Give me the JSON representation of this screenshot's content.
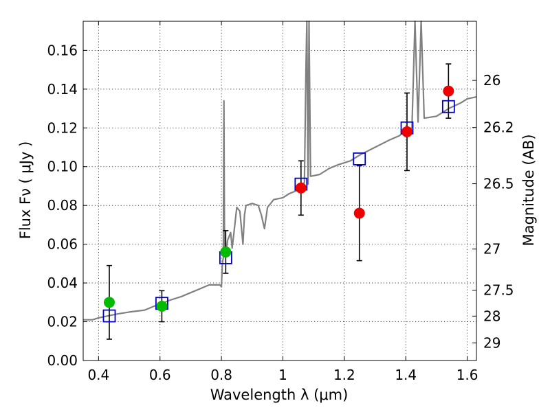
{
  "chart_data": {
    "type": "scatter",
    "xlabel": "Wavelength  λ (μm)",
    "ylabel": "Flux  Fν  ( μJy )",
    "y2label": "Magnitude (AB)",
    "xlim": [
      0.35,
      1.63
    ],
    "ylim": [
      0.0,
      0.175
    ],
    "xticks": [
      0.4,
      0.6,
      0.8,
      1.0,
      1.2,
      1.4,
      1.6
    ],
    "xtick_labels": [
      "0.4",
      "0.6",
      "0.8",
      "1",
      "1.2",
      "1.4",
      "1.6"
    ],
    "yticks": [
      0.0,
      0.02,
      0.04,
      0.06,
      0.08,
      0.1,
      0.12,
      0.14,
      0.16
    ],
    "ytick_labels": [
      "0.00",
      "0.02",
      "0.04",
      "0.06",
      "0.08",
      "0.10",
      "0.12",
      "0.14",
      "0.16"
    ],
    "mag_ticks": [
      {
        "label": "26",
        "flux": 0.1445
      },
      {
        "label": "26.2",
        "flux": 0.1202
      },
      {
        "label": "26.5",
        "flux": 0.0912
      },
      {
        "label": "27",
        "flux": 0.0575
      },
      {
        "label": "27.5",
        "flux": 0.0363
      },
      {
        "label": "28",
        "flux": 0.0229
      },
      {
        "label": "29",
        "flux": 0.0091
      }
    ],
    "grid": true,
    "model_spectrum": {
      "color": "#808080",
      "points": [
        [
          0.35,
          0.021
        ],
        [
          0.38,
          0.021
        ],
        [
          0.4,
          0.022
        ],
        [
          0.43,
          0.023
        ],
        [
          0.46,
          0.024
        ],
        [
          0.5,
          0.025
        ],
        [
          0.55,
          0.026
        ],
        [
          0.58,
          0.028
        ],
        [
          0.6,
          0.029
        ],
        [
          0.63,
          0.031
        ],
        [
          0.67,
          0.033
        ],
        [
          0.7,
          0.035
        ],
        [
          0.73,
          0.037
        ],
        [
          0.76,
          0.039
        ],
        [
          0.795,
          0.039
        ],
        [
          0.8,
          0.038
        ],
        [
          0.803,
          0.05
        ],
        [
          0.806,
          0.053
        ],
        [
          0.808,
          0.134
        ],
        [
          0.81,
          0.058
        ],
        [
          0.815,
          0.055
        ],
        [
          0.82,
          0.062
        ],
        [
          0.83,
          0.066
        ],
        [
          0.835,
          0.058
        ],
        [
          0.84,
          0.065
        ],
        [
          0.85,
          0.079
        ],
        [
          0.86,
          0.077
        ],
        [
          0.87,
          0.06
        ],
        [
          0.875,
          0.075
        ],
        [
          0.88,
          0.08
        ],
        [
          0.9,
          0.081
        ],
        [
          0.92,
          0.08
        ],
        [
          0.93,
          0.075
        ],
        [
          0.94,
          0.068
        ],
        [
          0.95,
          0.079
        ],
        [
          0.97,
          0.083
        ],
        [
          1.0,
          0.084
        ],
        [
          1.02,
          0.086
        ],
        [
          1.05,
          0.088
        ],
        [
          1.065,
          0.09
        ],
        [
          1.07,
          0.092
        ],
        [
          1.075,
          0.15
        ],
        [
          1.078,
          0.175
        ],
        [
          1.082,
          0.091
        ],
        [
          1.085,
          0.175
        ],
        [
          1.09,
          0.095
        ],
        [
          1.12,
          0.096
        ],
        [
          1.15,
          0.099
        ],
        [
          1.18,
          0.101
        ],
        [
          1.22,
          0.103
        ],
        [
          1.25,
          0.106
        ],
        [
          1.3,
          0.11
        ],
        [
          1.35,
          0.114
        ],
        [
          1.38,
          0.116
        ],
        [
          1.4,
          0.119
        ],
        [
          1.42,
          0.12
        ],
        [
          1.43,
          0.175
        ],
        [
          1.44,
          0.123
        ],
        [
          1.45,
          0.175
        ],
        [
          1.46,
          0.125
        ],
        [
          1.5,
          0.126
        ],
        [
          1.54,
          0.13
        ],
        [
          1.58,
          0.133
        ],
        [
          1.6,
          0.135
        ],
        [
          1.63,
          0.136
        ]
      ]
    },
    "model_photometry": {
      "marker": "open-square",
      "color": "#0000cc",
      "points": [
        {
          "x": 0.435,
          "y": 0.023
        },
        {
          "x": 0.606,
          "y": 0.0295
        },
        {
          "x": 0.814,
          "y": 0.053
        },
        {
          "x": 1.059,
          "y": 0.091
        },
        {
          "x": 1.249,
          "y": 0.104
        },
        {
          "x": 1.404,
          "y": 0.12
        },
        {
          "x": 1.539,
          "y": 0.131
        }
      ]
    },
    "observed": [
      {
        "x": 0.435,
        "y": 0.03,
        "yerr_low": 0.019,
        "yerr_high": 0.019,
        "color": "#00bb00"
      },
      {
        "x": 0.606,
        "y": 0.028,
        "yerr_low": 0.008,
        "yerr_high": 0.008,
        "color": "#00bb00"
      },
      {
        "x": 0.814,
        "y": 0.056,
        "yerr_low": 0.011,
        "yerr_high": 0.011,
        "color": "#00bb00"
      },
      {
        "x": 1.059,
        "y": 0.089,
        "yerr_low": 0.014,
        "yerr_high": 0.014,
        "color": "#ee0000"
      },
      {
        "x": 1.249,
        "y": 0.076,
        "yerr_low": 0.0245,
        "yerr_high": 0.0245,
        "color": "#ee0000"
      },
      {
        "x": 1.404,
        "y": 0.118,
        "yerr_low": 0.02,
        "yerr_high": 0.02,
        "color": "#ee0000"
      },
      {
        "x": 1.539,
        "y": 0.139,
        "yerr_low": 0.014,
        "yerr_high": 0.014,
        "color": "#ee0000"
      }
    ]
  }
}
